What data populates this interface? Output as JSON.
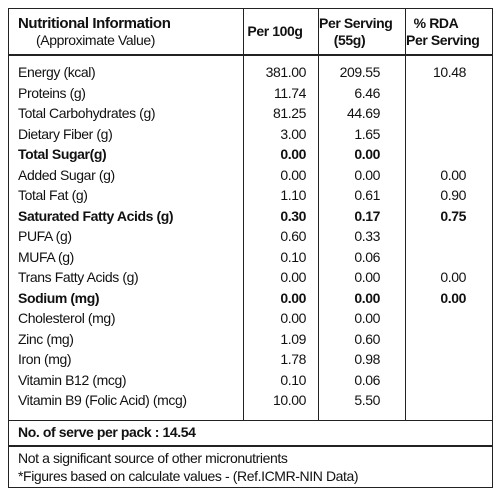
{
  "header": {
    "title": "Nutritional Information",
    "subtitle": "(Approximate Value)",
    "columns": [
      [
        "Per 100g"
      ],
      [
        "Per Serving",
        "(55g)"
      ],
      [
        "% RDA",
        "Per Serving"
      ]
    ]
  },
  "table": {
    "rows": [
      {
        "cells": [
          "Energy (kcal)",
          "381.00",
          "209.55",
          "10.48"
        ]
      },
      {
        "cells": [
          "Proteins (g)",
          "11.74",
          "6.46"
        ]
      },
      {
        "cells": [
          "Total Carbohydrates (g)",
          "81.25",
          "44.69"
        ]
      },
      {
        "cells": [
          "Dietary Fiber (g)",
          "3.00",
          "1.65"
        ]
      },
      {
        "cells": [
          "Total Sugar(g)",
          "0.00",
          "0.00"
        ],
        "bold": true
      },
      {
        "cells": [
          "Added Sugar (g)",
          "0.00",
          "0.00",
          "0.00"
        ]
      },
      {
        "cells": [
          "Total Fat (g)",
          "1.10",
          "0.61",
          "0.90"
        ]
      },
      {
        "cells": [
          "Saturated Fatty Acids (g)",
          "0.30",
          "0.17",
          "0.75"
        ],
        "bold": true
      },
      {
        "cells": [
          "PUFA (g)",
          "0.60",
          "0.33"
        ]
      },
      {
        "cells": [
          "MUFA (g)",
          "0.10",
          "0.06"
        ]
      },
      {
        "cells": [
          "Trans Fatty Acids (g)",
          "0.00",
          "0.00",
          "0.00"
        ]
      },
      {
        "cells": [
          "Sodium (mg)",
          "0.00",
          "0.00",
          "0.00"
        ],
        "bold": true
      },
      {
        "cells": [
          "Cholesterol (mg)",
          "0.00",
          "0.00"
        ]
      },
      {
        "cells": [
          "Zinc (mg)",
          "1.09",
          "0.60"
        ]
      },
      {
        "cells": [
          "Iron (mg)",
          "1.78",
          "0.98"
        ]
      },
      {
        "cells": [
          "Vitamin B12 (mcg)",
          "0.10",
          "0.06"
        ]
      },
      {
        "cells": [
          "Vitamin B9 (Folic Acid) (mcg)",
          "10.00",
          "5.50"
        ]
      }
    ]
  },
  "serves": "No. of serve per pack : 14.54",
  "footer": [
    "Not a significant source of other micronutrients",
    "*Figures based on calculate values - (Ref.ICMR-NIN Data)"
  ]
}
